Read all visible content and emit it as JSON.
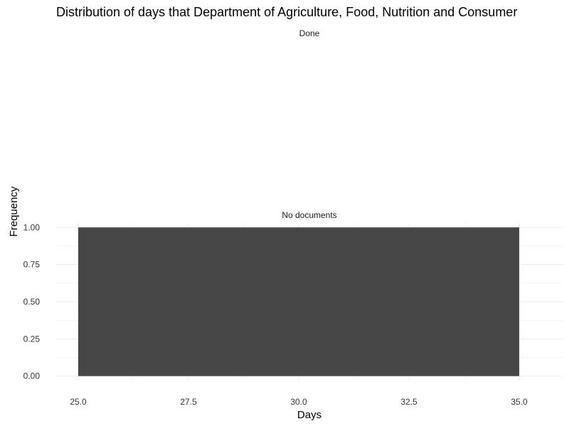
{
  "chart_data": {
    "type": "bar",
    "title": "Distribution of days that Department of Agriculture, Food, Nutrition and Consumer",
    "xlabel": "Days",
    "ylabel": "Frequency",
    "facets": [
      {
        "label": "Done",
        "bars": []
      },
      {
        "label": "No documents",
        "bars": [
          {
            "x_start": 25.0,
            "x_end": 35.0,
            "value": 1.0
          }
        ]
      }
    ],
    "xlim": [
      24.5,
      36.0
    ],
    "ylim": [
      -0.03,
      1.03
    ],
    "x_ticks": [
      "25.0",
      "27.5",
      "30.0",
      "32.5",
      "35.0"
    ],
    "y_ticks": [
      "0.00",
      "0.25",
      "0.50",
      "0.75",
      "1.00"
    ],
    "bar_color": "#474747",
    "grid": true,
    "legend": "none"
  }
}
